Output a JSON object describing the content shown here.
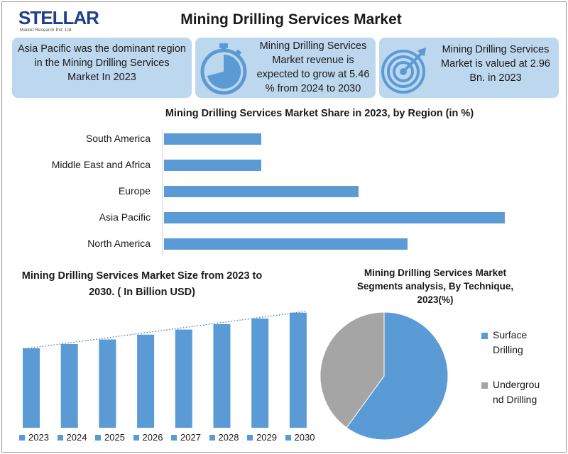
{
  "logo": {
    "brand": "STELLAR",
    "tagline": "Market Research Pvt. Ltd."
  },
  "title": "Mining Drilling Services Market",
  "cards": [
    {
      "text": "Asia Pacific was the dominant region in the Mining Drilling Services Market In 2023",
      "icon": "none"
    },
    {
      "text": "Mining Drilling Services Market revenue is expected to grow at 5.46 % from 2024 to 2030",
      "icon": "stopwatch-icon"
    },
    {
      "text": "Mining Drilling Services Market is valued at 2.96 Bn. in 2023",
      "icon": "target-icon"
    }
  ],
  "colors": {
    "card_bg": "#bdd7ee",
    "bar_blue": "#5b9bd5",
    "pie_grey": "#a5a5a5",
    "icon_blue": "#5b9bd5"
  },
  "chart_data": [
    {
      "type": "bar",
      "orientation": "horizontal",
      "title": "Mining Drilling Services Market Share in 2023, by Region (in %)",
      "categories": [
        "South America",
        "Middle East and Africa",
        "Europe",
        "Asia Pacific",
        "North America"
      ],
      "values": [
        10,
        10,
        20,
        35,
        25
      ],
      "xlim": [
        0,
        40
      ],
      "grid": false,
      "legend": "none"
    },
    {
      "type": "bar",
      "title": "Mining Drilling Services Market Size from 2023 to 2030. ( In Billion  USD)",
      "categories": [
        "2023",
        "2024",
        "2025",
        "2026",
        "2027",
        "2028",
        "2029",
        "2030"
      ],
      "values": [
        2.96,
        3.12,
        3.29,
        3.47,
        3.66,
        3.86,
        4.07,
        4.29
      ],
      "ylim": [
        0,
        4.6
      ],
      "trendline": true,
      "grid": false,
      "legend": "bottom"
    },
    {
      "type": "pie",
      "title": "Mining Drilling Services Market Segments analysis, By Technique, 2023(%)",
      "labels": [
        "Surface Drilling",
        "Underground Drilling"
      ],
      "legend_text": [
        "Surface\nDrilling",
        "Undergrou\nnd Drilling"
      ],
      "values": [
        60,
        40
      ],
      "legend": "right"
    }
  ]
}
